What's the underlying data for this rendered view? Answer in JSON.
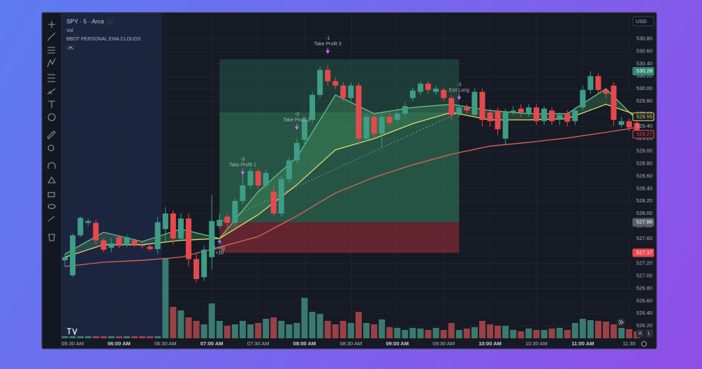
{
  "chart_data": {
    "type": "candlestick",
    "symbol": "SPY · 5 · Arca",
    "volume_label": "Vol",
    "indicator_label": "BBOT PERSONAL EMA CLOUDS",
    "currency": "USD",
    "scale_buttons": [
      "A",
      "L"
    ],
    "up_color": "#3f9d86",
    "down_color": "#e8484d",
    "volume_up_color": "#3a7a70",
    "volume_down_color": "#9a4146",
    "grid": true,
    "open": [
      527.25,
      527.01,
      527.65,
      527.85,
      527.85,
      527.57,
      527.45,
      527.62,
      527.5,
      527.57,
      527.5,
      527.47,
      527.43,
      527.75,
      528.0,
      527.6,
      527.92,
      527.27,
      526.98,
      527.3,
      527.8,
      527.95,
      527.85,
      528.2,
      528.45,
      528.68,
      528.45,
      528.35,
      528.0,
      528.55,
      528.85,
      529.18,
      529.5,
      529.9,
      530.3,
      530.12,
      530.05,
      529.85,
      530.05,
      529.2,
      529.55,
      529.28,
      529.55,
      529.5,
      529.6,
      529.85,
      529.95,
      530.08,
      529.95,
      529.98,
      529.85,
      529.6,
      529.7,
      529.58,
      529.95,
      529.62,
      529.65,
      529.2,
      529.62,
      529.68,
      529.6,
      529.7,
      529.48,
      529.65,
      529.5,
      529.6,
      529.48,
      529.7,
      529.98,
      530.2,
      529.98,
      530.05,
      529.42,
      529.48,
      529.45
    ],
    "high": [
      527.35,
      527.68,
      527.95,
      527.92,
      527.9,
      527.6,
      527.6,
      527.65,
      527.66,
      527.6,
      527.54,
      527.52,
      527.95,
      528.1,
      528.05,
      528.0,
      528.0,
      527.35,
      527.48,
      528.3,
      528.0,
      528.0,
      528.25,
      528.62,
      528.72,
      528.72,
      528.7,
      528.45,
      528.6,
      528.9,
      529.2,
      529.55,
      529.95,
      530.35,
      530.38,
      530.18,
      530.1,
      530.1,
      530.1,
      529.6,
      529.6,
      529.6,
      529.62,
      529.65,
      529.78,
      530.02,
      530.12,
      530.12,
      530.05,
      530.02,
      529.9,
      529.75,
      529.75,
      530.0,
      530.0,
      529.68,
      529.7,
      529.68,
      529.72,
      529.75,
      529.75,
      529.75,
      529.72,
      529.7,
      529.62,
      529.65,
      529.7,
      530.05,
      530.28,
      530.25,
      530.02,
      530.1,
      529.55,
      529.52,
      529.5
    ],
    "low": [
      527.15,
      526.98,
      527.62,
      527.8,
      527.5,
      527.38,
      527.38,
      527.44,
      527.46,
      527.46,
      527.44,
      527.4,
      527.35,
      527.55,
      527.5,
      527.55,
      527.15,
      526.9,
      526.92,
      527.1,
      527.75,
      527.78,
      527.8,
      528.15,
      528.4,
      528.4,
      528.4,
      527.95,
      527.95,
      528.5,
      528.8,
      529.1,
      529.45,
      529.85,
      530.05,
      530.0,
      529.8,
      529.8,
      529.1,
      529.15,
      529.2,
      529.05,
      529.4,
      529.45,
      529.55,
      529.8,
      529.9,
      529.92,
      529.9,
      529.8,
      529.5,
      529.55,
      529.6,
      529.55,
      529.4,
      529.4,
      529.25,
      529.1,
      529.58,
      529.55,
      529.55,
      529.42,
      529.42,
      529.42,
      529.42,
      529.4,
      529.42,
      529.65,
      529.92,
      529.92,
      529.85,
      529.4,
      529.38,
      529.32,
      529.22
    ],
    "close": [
      527.3,
      527.65,
      527.93,
      527.88,
      527.57,
      527.42,
      527.52,
      527.48,
      527.62,
      527.5,
      527.48,
      527.43,
      527.86,
      528.0,
      527.6,
      527.92,
      527.27,
      526.95,
      527.42,
      527.88,
      527.9,
      527.85,
      528.2,
      528.45,
      528.68,
      528.45,
      528.65,
      528.0,
      528.55,
      528.85,
      529.13,
      529.5,
      529.9,
      530.3,
      530.12,
      530.05,
      529.85,
      530.05,
      529.2,
      529.55,
      529.28,
      529.55,
      529.45,
      529.6,
      529.72,
      529.97,
      530.08,
      529.98,
      530.0,
      529.85,
      529.58,
      529.7,
      529.65,
      529.95,
      529.5,
      529.48,
      529.35,
      529.62,
      529.65,
      529.62,
      529.7,
      529.48,
      529.68,
      529.48,
      529.58,
      529.47,
      529.65,
      529.98,
      530.2,
      529.98,
      529.92,
      529.5,
      529.48,
      529.38,
      529.27
    ],
    "volume": [
      30,
      30,
      30,
      30,
      30,
      30,
      30,
      30,
      30,
      30,
      30,
      30,
      30,
      1150,
      450,
      400,
      300,
      250,
      200,
      500,
      250,
      180,
      200,
      250,
      200,
      220,
      280,
      300,
      250,
      200,
      220,
      580,
      380,
      350,
      250,
      200,
      250,
      220,
      380,
      220,
      200,
      270,
      160,
      150,
      120,
      150,
      140,
      120,
      150,
      120,
      220,
      120,
      140,
      160,
      250,
      200,
      180,
      180,
      120,
      100,
      140,
      120,
      120,
      140,
      150,
      120,
      220,
      280,
      260,
      250,
      240,
      200,
      150,
      130,
      100
    ],
    "lines": [
      {
        "color": "#6cc08a",
        "x": [
          0,
          5,
          10,
          15,
          20,
          25,
          30,
          35,
          40,
          45,
          50,
          55,
          60,
          65,
          70,
          74
        ],
        "values": [
          527.35,
          527.7,
          527.55,
          527.75,
          527.6,
          528.35,
          528.9,
          529.9,
          529.6,
          529.7,
          529.75,
          529.65,
          529.6,
          529.6,
          530.0,
          529.5
        ]
      },
      {
        "color": "#e3dc6a",
        "x": [
          0,
          5,
          10,
          15,
          20,
          25,
          30,
          35,
          40,
          45,
          50,
          55,
          60,
          65,
          70,
          74
        ],
        "values": [
          527.3,
          527.5,
          527.5,
          527.57,
          527.6,
          527.98,
          528.46,
          529.02,
          529.2,
          529.44,
          529.62,
          529.5,
          529.5,
          529.52,
          529.75,
          529.58
        ]
      },
      {
        "color": "#e06458",
        "x": [
          0,
          5,
          10,
          15,
          20,
          25,
          30,
          35,
          40,
          45,
          50,
          55,
          60,
          65,
          70,
          74
        ],
        "values": [
          527.15,
          527.22,
          527.25,
          527.3,
          527.46,
          527.63,
          527.96,
          528.33,
          528.58,
          528.78,
          528.95,
          529.08,
          529.14,
          529.21,
          529.3,
          529.38
        ]
      }
    ],
    "cloud_color": "#4caf6a",
    "position": {
      "start": 20,
      "end": 51,
      "entry": 527.86,
      "target": 530.47,
      "stop": 527.37,
      "exit": 529.62
    },
    "markers": [
      {
        "qty": "-3",
        "label": "Take Profit 1",
        "x": 23,
        "price": 528.64,
        "side": "above"
      },
      {
        "qty": "-3",
        "label": "Take Profit 2",
        "x": 30,
        "price": 529.36,
        "side": "above"
      },
      {
        "qty": "-1",
        "label": "Take Profit 3",
        "x": 34,
        "price": 530.58,
        "side": "above"
      },
      {
        "qty": "-3",
        "label": "Exit Long",
        "x": 51,
        "price": 529.84,
        "side": "above"
      },
      {
        "qty": "+10",
        "label": "Long",
        "x": 20,
        "price": 527.57,
        "side": "below"
      }
    ],
    "price_labels": [
      {
        "value": 530.28,
        "color": "#2e8b6f",
        "filled": true
      },
      {
        "value": 529.55,
        "color": "#e3dc6a",
        "filled": false
      },
      {
        "value": 529.27,
        "color": "#e8484d",
        "filled": false
      },
      {
        "value": 527.86,
        "color": "#5d606b",
        "filled": true
      },
      {
        "value": 527.37,
        "color": "#e8484d",
        "filled": true
      }
    ],
    "ylim": [
      526.0,
      531.22
    ],
    "yticks": [
      {
        "value": 526.2,
        "label": "526.20"
      },
      {
        "value": 526.4,
        "label": "526.40"
      },
      {
        "value": 526.6,
        "label": "526.60"
      },
      {
        "value": 526.8,
        "label": "526.80"
      },
      {
        "value": 527.0,
        "label": "527.00"
      },
      {
        "value": 527.2,
        "label": "527.20"
      },
      {
        "value": 527.4,
        "label": "527.40"
      },
      {
        "value": 527.6,
        "label": "527.60"
      },
      {
        "value": 527.8,
        "label": "527.80"
      },
      {
        "value": 528.0,
        "label": "528.00"
      },
      {
        "value": 528.2,
        "label": "528.20"
      },
      {
        "value": 528.4,
        "label": "528.40"
      },
      {
        "value": 528.6,
        "label": "528.60"
      },
      {
        "value": 528.8,
        "label": "528.80"
      },
      {
        "value": 529.0,
        "label": "529.00"
      },
      {
        "value": 529.2,
        "label": "529.20"
      },
      {
        "value": 529.4,
        "label": "529.40"
      },
      {
        "value": 529.6,
        "label": "529.60"
      },
      {
        "value": 529.8,
        "label": "529.80"
      },
      {
        "value": 530.0,
        "label": "530.00"
      },
      {
        "value": 530.2,
        "label": "530.20"
      },
      {
        "value": 530.4,
        "label": "530.40"
      },
      {
        "value": 530.6,
        "label": "530.60"
      },
      {
        "value": 530.8,
        "label": "530.80"
      }
    ],
    "xlim": [
      -0.45,
      76.55
    ],
    "xticks": [
      {
        "value": 1,
        "label": "05:30 AM"
      },
      {
        "value": 7,
        "label": "06:00 AM"
      },
      {
        "value": 13,
        "label": "06:30 AM"
      },
      {
        "value": 19,
        "label": "07:00 AM"
      },
      {
        "value": 25,
        "label": "07:30 AM"
      },
      {
        "value": 31,
        "label": "08:00 AM"
      },
      {
        "value": 37,
        "label": "08:30 AM"
      },
      {
        "value": 43,
        "label": "09:00 AM"
      },
      {
        "value": 49,
        "label": "09:30 AM"
      },
      {
        "value": 55,
        "label": "10:00 AM"
      },
      {
        "value": 61,
        "label": "10:30 AM"
      },
      {
        "value": 67,
        "label": "11:00 AM"
      },
      {
        "value": 73,
        "label": "11:30"
      }
    ]
  }
}
